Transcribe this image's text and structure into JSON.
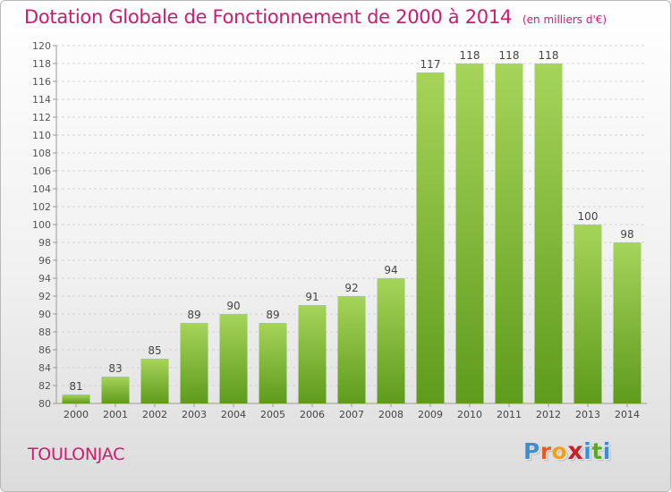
{
  "page": {
    "title": "Dotation Globale de Fonctionnement de 2000 à 2014",
    "unit": "(en milliers d'€)",
    "commune": "TOULONJAC",
    "logo": {
      "letters": [
        "P",
        "r",
        "o",
        "x",
        "i",
        "t",
        "i"
      ],
      "colors": [
        "#3a8fd8",
        "#e85a1f",
        "#f0a020",
        "#c8202a",
        "#3a8fd8",
        "#5aa82a",
        "#3a8fd8"
      ]
    }
  },
  "chart_data": {
    "type": "bar",
    "title": "Dotation Globale de Fonctionnement de 2000 à 2014",
    "subtitle": "(en milliers d'€)",
    "categories": [
      "2000",
      "2001",
      "2002",
      "2003",
      "2004",
      "2005",
      "2006",
      "2007",
      "2008",
      "2009",
      "2010",
      "2011",
      "2012",
      "2013",
      "2014"
    ],
    "values": [
      81,
      83,
      85,
      89,
      90,
      89,
      91,
      92,
      94,
      117,
      118,
      118,
      118,
      100,
      98
    ],
    "ylim": [
      80,
      120
    ],
    "yticks": [
      80,
      82,
      84,
      86,
      88,
      90,
      92,
      94,
      96,
      98,
      100,
      102,
      104,
      106,
      108,
      110,
      112,
      114,
      116,
      118,
      120
    ],
    "grid": true,
    "data_labels": true,
    "colors": {
      "bar_top": "#a6d45a",
      "bar_bottom": "#5e9b1c",
      "title": "#d2196e"
    }
  }
}
